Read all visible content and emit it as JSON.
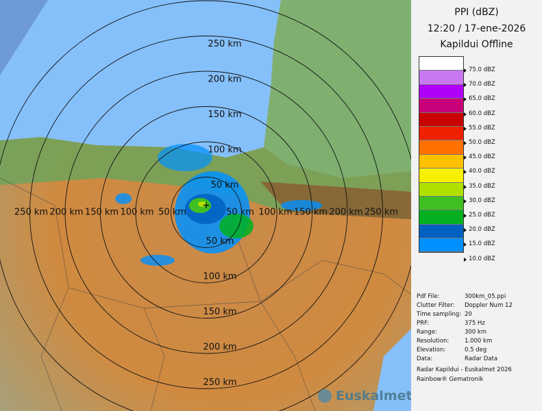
{
  "header": {
    "title": "PPI (dBZ)",
    "time": "12:20 / 17-ene-2026",
    "station": "Kapildui Offline"
  },
  "legend": [
    {
      "label": "75.0 dBZ",
      "color": "#ffffff"
    },
    {
      "label": "70.0 dBZ",
      "color": "#c878f0"
    },
    {
      "label": "65.0 dBZ",
      "color": "#b000f8"
    },
    {
      "label": "60.0 dBZ",
      "color": "#c8007a"
    },
    {
      "label": "55.0 dBZ",
      "color": "#c80000"
    },
    {
      "label": "50.0 dBZ",
      "color": "#f02000"
    },
    {
      "label": "45.0 dBZ",
      "color": "#ff7000"
    },
    {
      "label": "40.0 dBZ",
      "color": "#ffc000"
    },
    {
      "label": "35.0 dBZ",
      "color": "#f8f000"
    },
    {
      "label": "30.0 dBZ",
      "color": "#b0e000"
    },
    {
      "label": "25.0 dBZ",
      "color": "#40c020"
    },
    {
      "label": "20.0 dBZ",
      "color": "#00b020"
    },
    {
      "label": "15.0 dBZ",
      "color": "#0060c0"
    },
    {
      "label": "10.0 dBZ",
      "color": "#0090ff"
    }
  ],
  "info": [
    [
      "Pdf File:",
      "300km_05.ppi"
    ],
    [
      "Clutter Filter:",
      "Doppler Num 12"
    ],
    [
      "Time sampling:",
      "20"
    ],
    [
      "PRF:",
      "375 Hz"
    ],
    [
      "Range:",
      "300 km"
    ],
    [
      "Resolution:",
      "1.000 km"
    ],
    [
      "Elevation:",
      "0.5 deg"
    ],
    [
      "Data:",
      "Radar Data"
    ]
  ],
  "credits": [
    "Radar Kapildui - Euskalmet 2026",
    "Rainbow® Gematronik"
  ],
  "logo": "Euskalmet",
  "rings": [
    "50 km",
    "100 km",
    "150 km",
    "200 km",
    "250 km"
  ]
}
